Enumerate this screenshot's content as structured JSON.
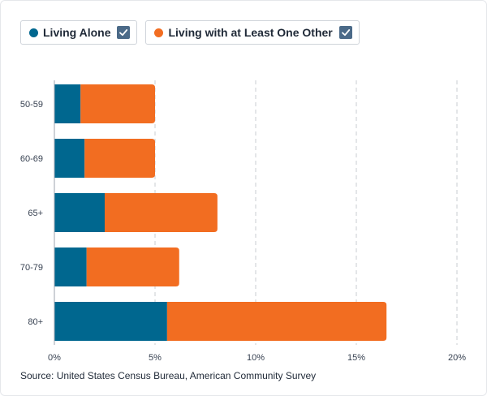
{
  "legend": {
    "items": [
      {
        "label": "Living Alone",
        "color": "#00678f",
        "checked": true
      },
      {
        "label": "Living with at Least One Other",
        "color": "#f26d21",
        "checked": true
      }
    ]
  },
  "source": "Source: United States Census Bureau, American Community Survey",
  "chart_data": {
    "type": "bar",
    "orientation": "horizontal",
    "stacked": true,
    "categories": [
      "50-59",
      "60-69",
      "65+",
      "70-79",
      "80+"
    ],
    "series": [
      {
        "name": "Living Alone",
        "color": "#00678f",
        "values": [
          1.3,
          1.5,
          2.5,
          1.6,
          5.6
        ]
      },
      {
        "name": "Living with at Least One Other",
        "color": "#f26d21",
        "values": [
          3.7,
          3.5,
          5.6,
          4.6,
          10.9
        ]
      }
    ],
    "xlim": [
      0,
      20
    ],
    "xticks": [
      0,
      5,
      10,
      15,
      20
    ],
    "xtick_labels": [
      "0%",
      "5%",
      "10%",
      "15%",
      "20%"
    ],
    "grid": "vertical-dashed"
  }
}
